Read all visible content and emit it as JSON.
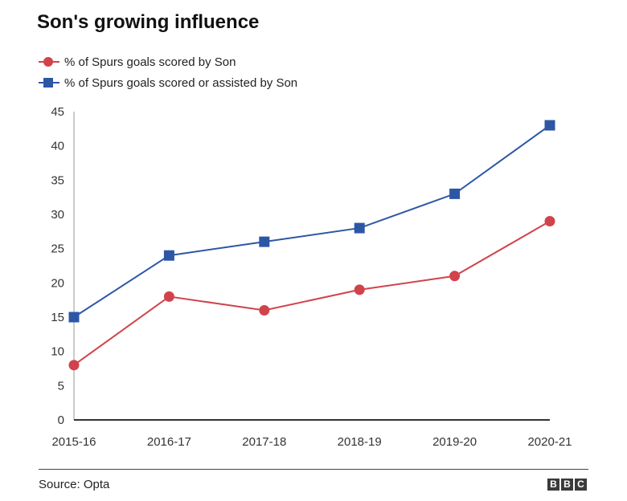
{
  "chart_data": {
    "type": "line",
    "title": "Son's growing influence",
    "categories": [
      "2015-16",
      "2016-17",
      "2017-18",
      "2018-19",
      "2019-20",
      "2020-21"
    ],
    "series": [
      {
        "name": "% of Spurs goals scored by Son",
        "color": "#d1434b",
        "marker": "circle",
        "values": [
          8,
          18,
          16,
          19,
          21,
          29
        ]
      },
      {
        "name": "% of Spurs goals scored or assisted by Son",
        "color": "#2d57a5",
        "marker": "square",
        "values": [
          15,
          24,
          26,
          28,
          33,
          43
        ]
      }
    ],
    "ylim": [
      0,
      45
    ],
    "yticks": [
      0,
      5,
      10,
      15,
      20,
      25,
      30,
      35,
      40,
      45
    ],
    "xlabel": "",
    "ylabel": ""
  },
  "footer": {
    "source": "Source: Opta",
    "logo_letters": [
      "B",
      "B",
      "C"
    ]
  }
}
